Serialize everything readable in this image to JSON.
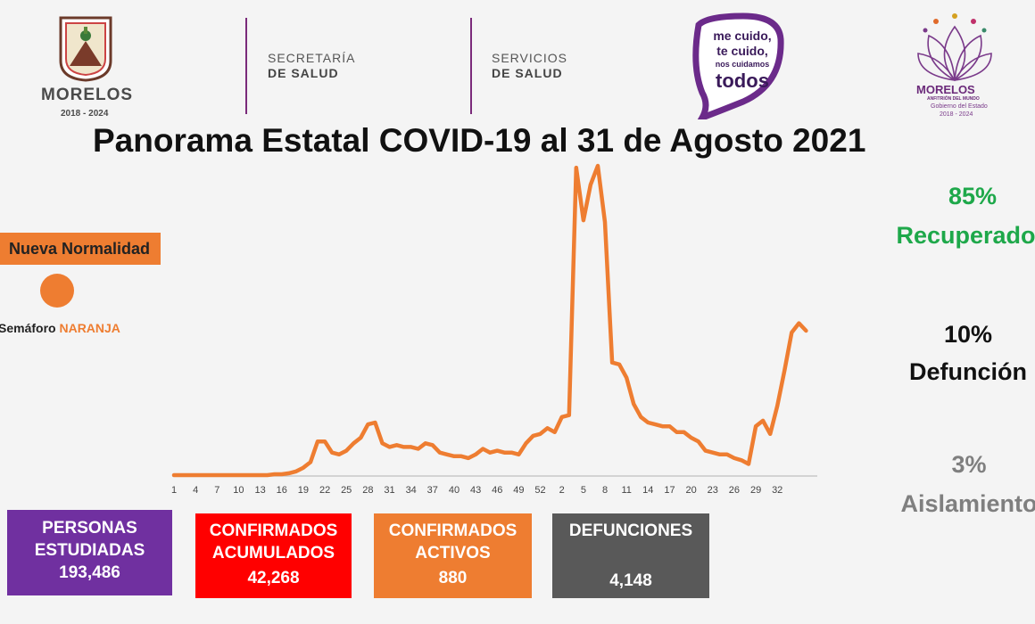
{
  "header": {
    "logo_left": {
      "name": "MORELOS",
      "years": "2018 - 2024"
    },
    "dept1": {
      "line1": "SECRETARÍA",
      "line2": "DE SALUD"
    },
    "dept2": {
      "line1": "SERVICIOS",
      "line2": "DE SALUD"
    },
    "campaign": {
      "line1": "me cuido,",
      "line2": "te cuido,",
      "line3": "nos cuidamos",
      "line4": "todos"
    },
    "logo_right": {
      "name": "MORELOS",
      "sub1": "ANFITRIÓN DEL MUNDO",
      "sub2": "Gobierno del Estado",
      "sub3": "2018 - 2024"
    }
  },
  "title": "Panorama Estatal COVID-19 al 31 de Agosto 2021",
  "status": {
    "label": "Nueva Normalidad",
    "semaforo_label": "Semáforo",
    "semaforo_value": "NARANJA"
  },
  "stats": [
    {
      "percent": "85%",
      "label": "Recuperados",
      "color": "#1ea84a"
    },
    {
      "percent": "10%",
      "label": "Defunción",
      "color": "#111111"
    },
    {
      "percent": "3%",
      "label": "Aislamiento",
      "color": "#7f7f7f"
    }
  ],
  "boxes": [
    {
      "label1": "PERSONAS",
      "label2": "ESTUDIADAS",
      "value": "193,486",
      "color": "#7030a0"
    },
    {
      "label1": "CONFIRMADOS",
      "label2": "ACUMULADOS",
      "value": "42,268",
      "color": "#ff0000"
    },
    {
      "label1": "CONFIRMADOS",
      "label2": "ACTIVOS",
      "value": "880",
      "color": "#ee7d31"
    },
    {
      "label1": "DEFUNCIONES",
      "label2": "",
      "value": "4,148",
      "color": "#595959"
    }
  ],
  "chart_data": {
    "type": "line",
    "title": "",
    "xlabel": "",
    "ylabel": "",
    "x_tick_labels": [
      "1",
      "4",
      "7",
      "10",
      "13",
      "16",
      "19",
      "22",
      "25",
      "28",
      "31",
      "34",
      "37",
      "40",
      "43",
      "46",
      "49",
      "52",
      "2",
      "5",
      "8",
      "11",
      "14",
      "17",
      "20",
      "23",
      "26",
      "29",
      "32"
    ],
    "series_color": "#ee7d31",
    "grid": false,
    "ylim": [
      0,
      100
    ],
    "values": [
      0,
      0,
      0,
      0,
      0,
      0,
      0,
      0,
      0,
      0,
      0,
      0,
      0,
      0,
      0.3,
      0.3,
      0.6,
      1.2,
      2.4,
      4.2,
      10.9,
      10.9,
      7.3,
      6.7,
      7.9,
      10.3,
      12.1,
      16.4,
      17,
      10.3,
      9.1,
      9.7,
      9.1,
      9.1,
      8.5,
      10.3,
      9.7,
      7.3,
      6.7,
      6.1,
      6.1,
      5.5,
      6.7,
      8.5,
      7.3,
      7.9,
      7.3,
      7.3,
      6.7,
      10.3,
      12.7,
      13.3,
      15.2,
      13.9,
      18.8,
      19.4,
      99.4,
      82.4,
      93.9,
      100,
      81.8,
      36.4,
      35.8,
      31.5,
      23,
      18.8,
      17,
      16.4,
      15.8,
      15.8,
      13.9,
      13.9,
      12.1,
      10.9,
      7.9,
      7.3,
      6.7,
      6.7,
      5.5,
      4.8,
      3.6,
      15.8,
      17.6,
      13.3,
      22.4,
      33.9,
      46.1,
      49.1,
      46.7
    ]
  }
}
